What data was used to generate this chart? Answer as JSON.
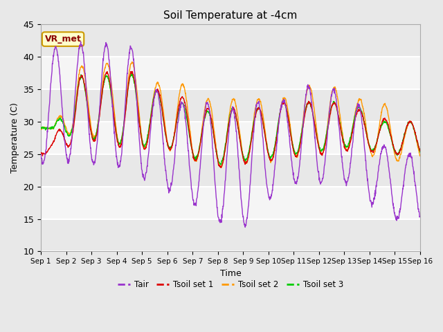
{
  "title": "Soil Temperature at -4cm",
  "xlabel": "Time",
  "ylabel": "Temperature (C)",
  "ylim": [
    10,
    45
  ],
  "n_days": 15,
  "annotation_text": "VR_met",
  "fig_bg": "#e8e8e8",
  "plot_bg": "#e8e8e8",
  "colors": {
    "Tair": "#9933cc",
    "Tsoil_set1": "#dd0000",
    "Tsoil_set2": "#ff9900",
    "Tsoil_set3": "#00cc00"
  },
  "legend_labels": [
    "Tair",
    "Tsoil set 1",
    "Tsoil set 2",
    "Tsoil set 3"
  ],
  "tick_labels": [
    "Sep 1",
    "Sep 2",
    "Sep 3",
    "Sep 4",
    "Sep 5",
    "Sep 6",
    "Sep 7",
    "Sep 8",
    "Sep 9",
    "Sep 10",
    "Sep 11",
    "Sep 12",
    "Sep 13",
    "Sep 14",
    "Sep 15",
    "Sep 16"
  ],
  "yticks": [
    10,
    15,
    20,
    25,
    30,
    35,
    40,
    45
  ]
}
